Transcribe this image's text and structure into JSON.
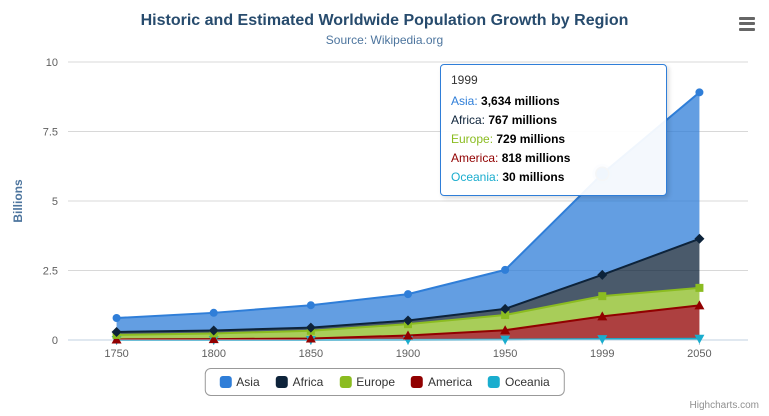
{
  "title": "Historic and Estimated Worldwide Population Growth by Region",
  "subtitle": "Source: Wikipedia.org",
  "credits": "Highcharts.com",
  "y_axis_title": "Billions",
  "chart_data": {
    "type": "area",
    "stacking": "normal",
    "categories": [
      "1750",
      "1800",
      "1850",
      "1900",
      "1950",
      "1999",
      "2050"
    ],
    "series": [
      {
        "name": "Asia",
        "color": "#2f7ed8",
        "marker": "circle",
        "values": [
          502,
          635,
          809,
          947,
          1402,
          3634,
          5268
        ]
      },
      {
        "name": "Africa",
        "color": "#0d233a",
        "marker": "diamond",
        "values": [
          106,
          107,
          111,
          133,
          221,
          767,
          1766
        ]
      },
      {
        "name": "Europe",
        "color": "#8bbc21",
        "marker": "square",
        "values": [
          163,
          203,
          276,
          408,
          547,
          729,
          628
        ]
      },
      {
        "name": "America",
        "color": "#910000",
        "marker": "triangle",
        "values": [
          18,
          31,
          54,
          156,
          339,
          818,
          1201
        ]
      },
      {
        "name": "Oceania",
        "color": "#1aadce",
        "marker": "triangle-down",
        "values": [
          2,
          2,
          2,
          6,
          13,
          30,
          46
        ]
      }
    ],
    "values_unit": "millions",
    "xlabel": "",
    "ylabel": "Billions",
    "ylim": [
      0,
      10
    ],
    "yticks": [
      0,
      2.5,
      5,
      7.5,
      10
    ],
    "grid": true,
    "legend_position": "bottom",
    "hover_point": {
      "series": "Asia",
      "category": "1999"
    }
  },
  "tooltip": {
    "header": "1999",
    "rows": [
      {
        "name": "Asia",
        "value": "3,634 millions",
        "color": "#2f7ed8"
      },
      {
        "name": "Africa",
        "value": "767 millions",
        "color": "#0d233a"
      },
      {
        "name": "Europe",
        "value": "729 millions",
        "color": "#8bbc21"
      },
      {
        "name": "America",
        "value": "818 millions",
        "color": "#910000"
      },
      {
        "name": "Oceania",
        "value": "30 millions",
        "color": "#1aadce"
      }
    ]
  }
}
